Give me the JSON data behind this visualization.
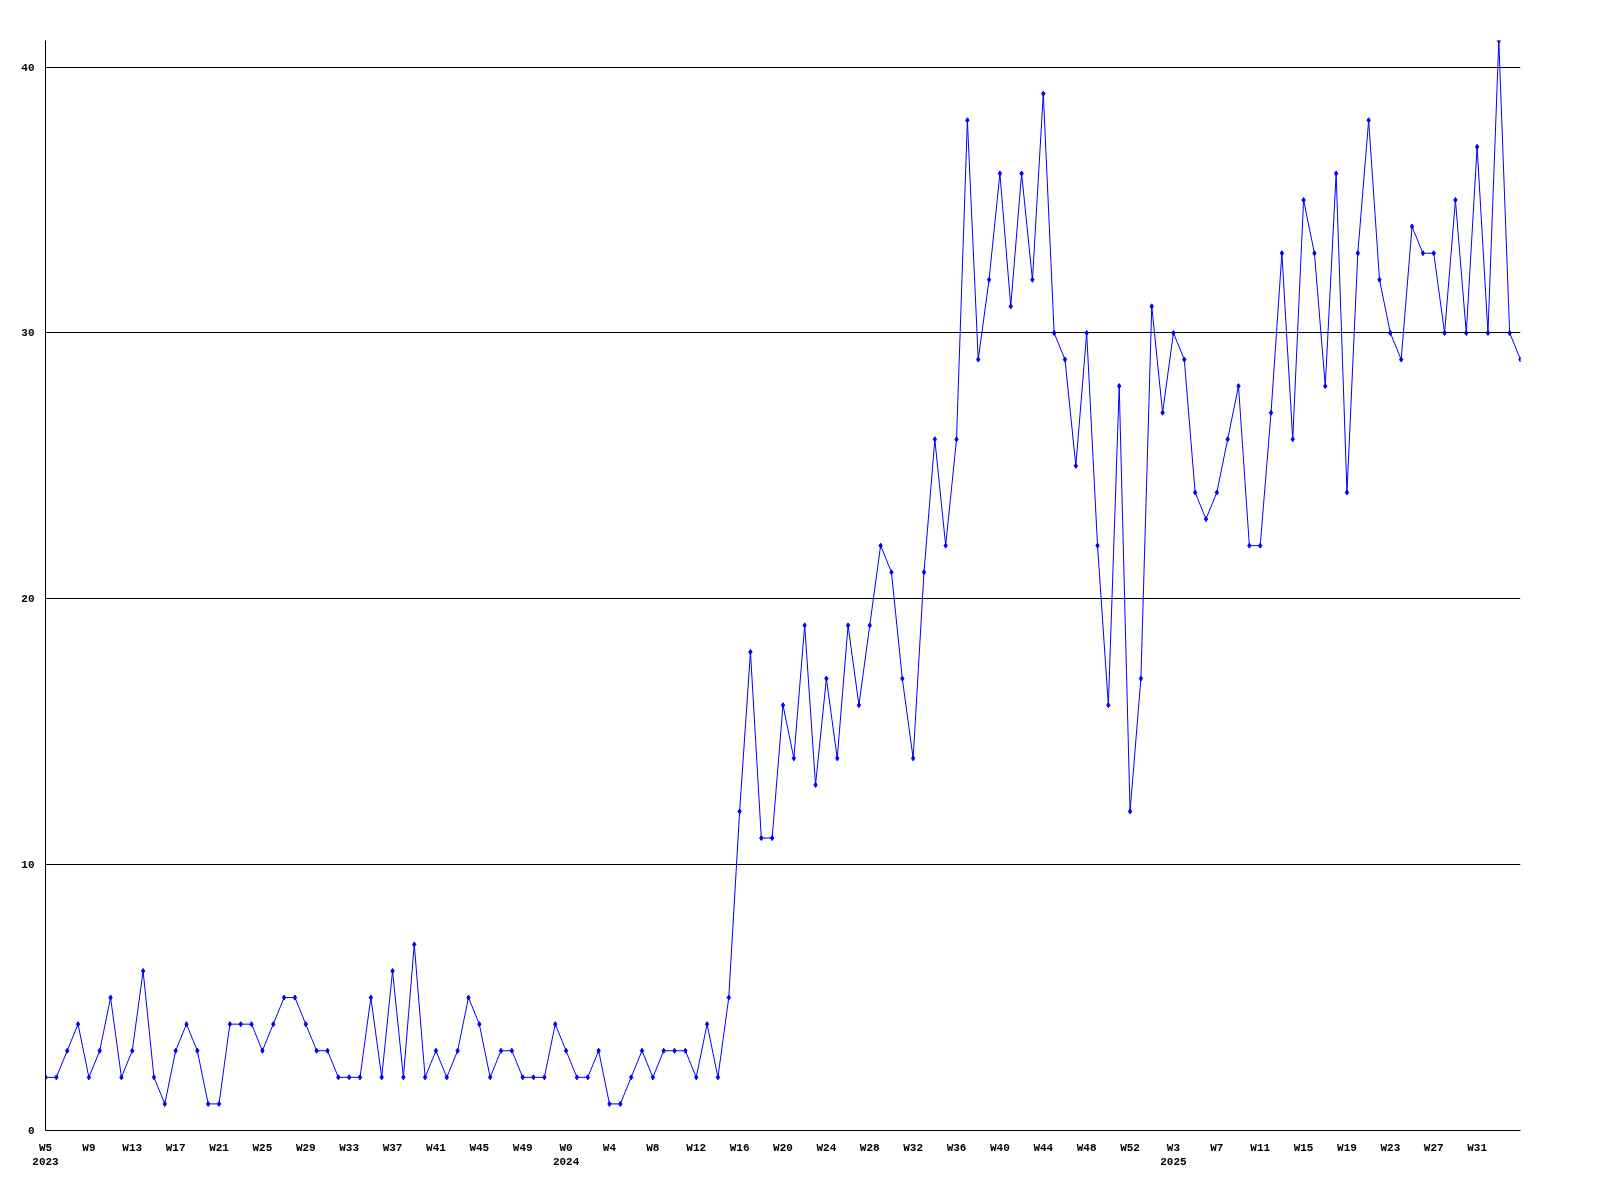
{
  "chart_data": {
    "type": "line",
    "categories": [
      "W5\n2023",
      null,
      null,
      null,
      "W9",
      null,
      null,
      null,
      "W13",
      null,
      null,
      null,
      "W17",
      null,
      null,
      null,
      "W21",
      null,
      null,
      null,
      "W25",
      null,
      null,
      null,
      "W29",
      null,
      null,
      null,
      "W33",
      null,
      null,
      null,
      "W37",
      null,
      null,
      null,
      "W41",
      null,
      null,
      null,
      "W45",
      null,
      null,
      null,
      "W49",
      null,
      null,
      null,
      "W0\n2024",
      null,
      null,
      null,
      "W4",
      null,
      null,
      null,
      "W8",
      null,
      null,
      null,
      "W12",
      null,
      null,
      null,
      "W16",
      null,
      null,
      null,
      "W20",
      null,
      null,
      null,
      "W24",
      null,
      null,
      null,
      "W28",
      null,
      null,
      null,
      "W32",
      null,
      null,
      null,
      "W36",
      null,
      null,
      null,
      "W40",
      null,
      null,
      null,
      "W44",
      null,
      null,
      null,
      "W48",
      null,
      null,
      null,
      "W52",
      null,
      null,
      null,
      "W3\n2025",
      null,
      null,
      null,
      "W7",
      null,
      null,
      null,
      "W11",
      null,
      null,
      null,
      "W15",
      null,
      null,
      null,
      "W19",
      null,
      null,
      null,
      "W23",
      null,
      null,
      null,
      "W27",
      null,
      null,
      null,
      "W31",
      null,
      null,
      null,
      null
    ],
    "series": [
      {
        "color": "#0000ff",
        "values": [
          2,
          2,
          3,
          4,
          2,
          3,
          5,
          2,
          3,
          6,
          2,
          1,
          3,
          4,
          3,
          1,
          1,
          4,
          4,
          4,
          3,
          4,
          5,
          5,
          4,
          3,
          3,
          2,
          2,
          2,
          5,
          2,
          6,
          2,
          7,
          2,
          3,
          2,
          3,
          5,
          4,
          2,
          3,
          3,
          2,
          2,
          2,
          4,
          3,
          2,
          2,
          3,
          1,
          1,
          2,
          3,
          2,
          3,
          3,
          3,
          2,
          4,
          2,
          5,
          12,
          18,
          11,
          11,
          16,
          14,
          19,
          13,
          17,
          14,
          19,
          16,
          19,
          22,
          21,
          17,
          14,
          21,
          26,
          22,
          26,
          38,
          29,
          32,
          36,
          31,
          36,
          32,
          39,
          30,
          29,
          25,
          30,
          22,
          16,
          28,
          12,
          17,
          31,
          27,
          30,
          29,
          24,
          23,
          24,
          26,
          28,
          22,
          22,
          27,
          33,
          26,
          35,
          33,
          28,
          36,
          24,
          33,
          38,
          32,
          30,
          29,
          34,
          33,
          33,
          30,
          35,
          30,
          37,
          30,
          41,
          30,
          29
        ]
      }
    ],
    "ylim": [
      0,
      41
    ],
    "yticks": [
      0,
      10,
      20,
      30,
      40
    ],
    "grid": "y",
    "marker": "diamond",
    "line_style": "solid"
  }
}
